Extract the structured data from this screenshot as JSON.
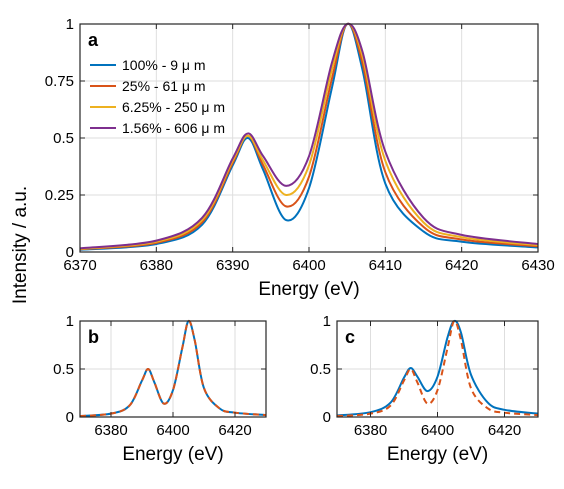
{
  "figure": {
    "ylabel": "Intensity / a.u.",
    "colors": {
      "blue": "#0072BD",
      "orange": "#D95319",
      "yellow": "#EDB120",
      "purple": "#7E2F8E",
      "grid": "#dedede",
      "axis": "#262626"
    }
  },
  "chart_data": [
    {
      "panel": "a",
      "type": "line",
      "xlabel": "Energy (eV)",
      "ylabel": "Intensity / a.u.",
      "xlim": [
        6370,
        6430
      ],
      "ylim": [
        0,
        1
      ],
      "xticks": [
        "6370",
        "6380",
        "6390",
        "6400",
        "6410",
        "6420",
        "6430"
      ],
      "yticks": [
        "0",
        "0.25",
        "0.5",
        "0.75",
        "1"
      ],
      "grid": true,
      "legend_position": "top-left",
      "peaks": [
        6392,
        6405
      ],
      "series": [
        {
          "name": "100% - 9  μ m",
          "color": "#0072BD",
          "x": [
            6370,
            6380,
            6386,
            6390,
            6392,
            6394,
            6397,
            6400,
            6403,
            6405,
            6407,
            6410,
            6415,
            6420,
            6430
          ],
          "y": [
            0.01,
            0.035,
            0.12,
            0.38,
            0.5,
            0.36,
            0.14,
            0.28,
            0.72,
            1.0,
            0.8,
            0.3,
            0.09,
            0.045,
            0.02
          ]
        },
        {
          "name": "25% - 61  μ m",
          "color": "#D95319",
          "x": [
            6370,
            6380,
            6386,
            6390,
            6392,
            6394,
            6397,
            6400,
            6403,
            6405,
            6407,
            6410,
            6415,
            6420,
            6430
          ],
          "y": [
            0.012,
            0.04,
            0.13,
            0.39,
            0.51,
            0.38,
            0.2,
            0.33,
            0.76,
            1.0,
            0.83,
            0.35,
            0.11,
            0.055,
            0.025
          ]
        },
        {
          "name": "6.25% - 250  μ m",
          "color": "#EDB120",
          "x": [
            6370,
            6380,
            6386,
            6390,
            6392,
            6394,
            6397,
            6400,
            6403,
            6405,
            6407,
            6410,
            6415,
            6420,
            6430
          ],
          "y": [
            0.014,
            0.045,
            0.14,
            0.4,
            0.51,
            0.4,
            0.25,
            0.38,
            0.8,
            1.0,
            0.86,
            0.4,
            0.13,
            0.065,
            0.03
          ]
        },
        {
          "name": "1.56% - 606  μ m",
          "color": "#7E2F8E",
          "x": [
            6370,
            6380,
            6386,
            6390,
            6392,
            6394,
            6397,
            6400,
            6403,
            6405,
            6407,
            6410,
            6415,
            6420,
            6430
          ],
          "y": [
            0.016,
            0.05,
            0.15,
            0.41,
            0.52,
            0.42,
            0.29,
            0.42,
            0.83,
            1.0,
            0.88,
            0.44,
            0.15,
            0.075,
            0.035
          ]
        }
      ]
    },
    {
      "panel": "b",
      "type": "line",
      "xlabel": "Energy (eV)",
      "xlim": [
        6370,
        6430
      ],
      "ylim": [
        0,
        1
      ],
      "xticks": [
        "6380",
        "6400",
        "6420"
      ],
      "yticks": [
        "0",
        "0.5",
        "1"
      ],
      "grid": true,
      "peaks": [
        6392,
        6405
      ],
      "series": [
        {
          "style": "solid",
          "color": "#0072BD",
          "x": [
            6370,
            6380,
            6386,
            6390,
            6392,
            6394,
            6397,
            6400,
            6403,
            6405,
            6407,
            6410,
            6415,
            6420,
            6430
          ],
          "y": [
            0.01,
            0.035,
            0.12,
            0.38,
            0.5,
            0.36,
            0.14,
            0.28,
            0.72,
            1.0,
            0.8,
            0.3,
            0.09,
            0.045,
            0.02
          ]
        },
        {
          "style": "dashed",
          "color": "#D95319",
          "x": [
            6370,
            6380,
            6386,
            6390,
            6392,
            6394,
            6397,
            6400,
            6403,
            6405,
            6407,
            6410,
            6415,
            6420,
            6430
          ],
          "y": [
            0.01,
            0.035,
            0.12,
            0.38,
            0.5,
            0.36,
            0.14,
            0.28,
            0.72,
            1.0,
            0.8,
            0.3,
            0.09,
            0.045,
            0.02
          ]
        }
      ]
    },
    {
      "panel": "c",
      "type": "line",
      "xlabel": "Energy (eV)",
      "xlim": [
        6370,
        6430
      ],
      "ylim": [
        0,
        1
      ],
      "xticks": [
        "6380",
        "6400",
        "6420"
      ],
      "yticks": [
        "0",
        "0.5",
        "1"
      ],
      "grid": true,
      "peaks": [
        6392,
        6405
      ],
      "series": [
        {
          "style": "solid",
          "color": "#0072BD",
          "x": [
            6370,
            6380,
            6386,
            6390,
            6392,
            6394,
            6397,
            6400,
            6403,
            6405,
            6407,
            6410,
            6415,
            6420,
            6430
          ],
          "y": [
            0.016,
            0.05,
            0.15,
            0.41,
            0.51,
            0.42,
            0.27,
            0.42,
            0.83,
            1.0,
            0.88,
            0.44,
            0.15,
            0.075,
            0.035
          ]
        },
        {
          "style": "dashed",
          "color": "#D95319",
          "x": [
            6370,
            6380,
            6386,
            6390,
            6392,
            6394,
            6397,
            6400,
            6403,
            6405,
            6407,
            6410,
            6415,
            6420,
            6430
          ],
          "y": [
            0.01,
            0.035,
            0.12,
            0.38,
            0.5,
            0.36,
            0.14,
            0.28,
            0.72,
            1.0,
            0.8,
            0.3,
            0.09,
            0.045,
            0.02
          ]
        }
      ]
    }
  ]
}
